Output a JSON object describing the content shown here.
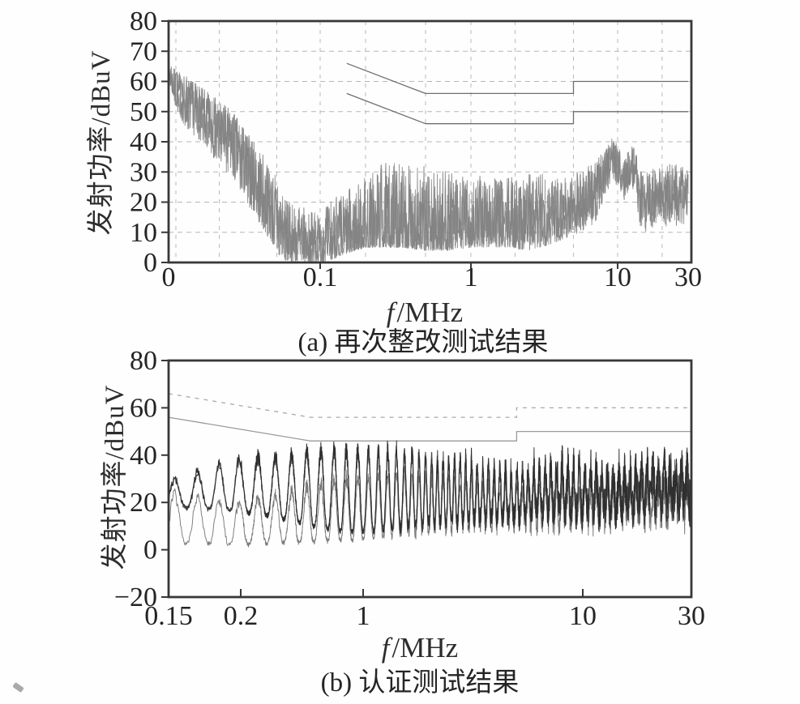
{
  "figure": {
    "description_visible_text_only": true
  },
  "chart_data": [
    {
      "id": "a",
      "type": "line",
      "caption": "(a) 再次整改测试结果",
      "ylabel": "发射功率/dBuV",
      "xlabel_f": "f",
      "xlabel_unit": "/MHz",
      "x_scale": "log",
      "y_range": [
        0,
        80
      ],
      "y_ticks": [
        0,
        10,
        20,
        30,
        40,
        50,
        60,
        70,
        80
      ],
      "x_ticks": [
        {
          "f": 0.0089,
          "label": "0"
        },
        {
          "f": 0.1,
          "label": "0.1"
        },
        {
          "f": 1,
          "label": "1"
        },
        {
          "f": 10,
          "label": "10"
        },
        {
          "f": 30,
          "label": "30"
        }
      ],
      "grid": {
        "horizontal_every_dbuv": 10,
        "vertical_at_mhz": [
          0.01,
          0.02,
          0.05,
          0.1,
          0.2,
          0.5,
          1,
          2,
          5,
          10,
          20
        ],
        "style": "dashed"
      },
      "limits": [
        {
          "name": "quasi-peak-limit",
          "style": "solid",
          "color": "#6e6e6e",
          "points_mhz_dbuv": [
            [
              0.15,
              66
            ],
            [
              0.5,
              56
            ],
            [
              5,
              56
            ],
            [
              5,
              60
            ],
            [
              30,
              60
            ]
          ]
        },
        {
          "name": "average-limit",
          "style": "solid",
          "color": "#6e6e6e",
          "points_mhz_dbuv": [
            [
              0.15,
              56
            ],
            [
              0.5,
              46
            ],
            [
              5,
              46
            ],
            [
              5,
              50
            ],
            [
              30,
              50
            ]
          ]
        }
      ],
      "series": [
        {
          "name": "emission-trace",
          "color": "#848484",
          "mode": "noise",
          "envelope_f_lo_hi_typ": [
            [
              0.0089,
              58,
              66,
              63
            ],
            [
              0.01,
              50,
              64,
              57
            ],
            [
              0.012,
              44,
              62,
              52
            ],
            [
              0.015,
              40,
              58,
              49
            ],
            [
              0.02,
              32,
              54,
              44
            ],
            [
              0.025,
              27,
              50,
              38
            ],
            [
              0.03,
              21,
              45,
              32
            ],
            [
              0.04,
              11,
              36,
              23
            ],
            [
              0.05,
              3,
              28,
              14
            ],
            [
              0.06,
              0,
              20,
              8
            ],
            [
              0.08,
              0,
              18,
              6
            ],
            [
              0.1,
              0,
              16,
              5
            ],
            [
              0.12,
              1,
              21,
              7
            ],
            [
              0.15,
              3,
              24,
              9
            ],
            [
              0.2,
              5,
              29,
              10
            ],
            [
              0.25,
              5,
              33,
              11
            ],
            [
              0.35,
              5,
              33,
              11
            ],
            [
              0.5,
              4,
              32,
              10
            ],
            [
              0.7,
              4,
              30,
              11
            ],
            [
              1.0,
              5,
              29,
              12
            ],
            [
              1.6,
              5,
              28,
              13
            ],
            [
              2.5,
              4,
              30,
              14
            ],
            [
              3.5,
              6,
              29,
              15
            ],
            [
              4.5,
              8,
              29,
              16
            ],
            [
              5.5,
              10,
              31,
              19
            ],
            [
              7.0,
              13,
              33,
              23
            ],
            [
              8.0,
              20,
              37,
              29
            ],
            [
              9.2,
              28,
              42,
              36
            ],
            [
              10.3,
              24,
              38,
              31
            ],
            [
              11.0,
              20,
              33,
              26
            ],
            [
              12.0,
              25,
              39,
              32
            ],
            [
              13.0,
              24,
              38,
              31
            ],
            [
              14.5,
              9,
              30,
              19
            ],
            [
              16,
              11,
              31,
              21
            ],
            [
              20,
              12,
              32,
              22
            ],
            [
              25,
              12,
              33,
              23
            ],
            [
              30,
              13,
              31,
              22
            ]
          ]
        }
      ]
    },
    {
      "id": "b",
      "type": "line",
      "caption": "(b) 认证测试结果",
      "ylabel": "发射功率/dBuV",
      "xlabel_f": "f",
      "xlabel_unit": "/MHz",
      "x_scale": "log",
      "y_range": [
        -20,
        80
      ],
      "y_ticks": [
        -20,
        0,
        20,
        40,
        60,
        80
      ],
      "x_ticks": [
        {
          "f": 0.15,
          "label": "0.15"
        },
        {
          "f": 0.2,
          "label": "0.2"
        },
        {
          "f": 1,
          "label": "1"
        },
        {
          "f": 10,
          "label": "10"
        },
        {
          "f": 30,
          "label": "30"
        }
      ],
      "grid": {
        "horizontal_every_dbuv": 0,
        "vertical_at_mhz": [],
        "style": "none"
      },
      "limits": [
        {
          "name": "quasi-peak-limit",
          "style": "dashed",
          "color": "#a8a8a8",
          "points_mhz_dbuv": [
            [
              0.15,
              66
            ],
            [
              0.5,
              56
            ],
            [
              5,
              56
            ],
            [
              5,
              60
            ],
            [
              30,
              60
            ]
          ]
        },
        {
          "name": "average-limit",
          "style": "solid",
          "color": "#9a9a9a",
          "points_mhz_dbuv": [
            [
              0.15,
              56
            ],
            [
              0.5,
              46
            ],
            [
              5,
              46
            ],
            [
              5,
              50
            ],
            [
              30,
              50
            ]
          ]
        }
      ],
      "hump_structure": {
        "note": "periodic switching-harmonic humps, ~3 humps between 0.15 and 0.2 MHz, merging into dense noise above ~1 MHz"
      },
      "series": [
        {
          "name": "average-trace",
          "color": "#7a7a7a",
          "mode": "comb",
          "envelope_f_lo_hi_typ": [
            [
              0.15,
              3,
              26,
              8
            ],
            [
              0.2,
              2,
              23,
              7
            ],
            [
              0.3,
              3,
              25,
              8
            ],
            [
              0.5,
              3,
              30,
              10
            ],
            [
              0.7,
              4,
              32,
              11
            ],
            [
              1.0,
              4,
              34,
              12
            ],
            [
              1.5,
              5,
              36,
              13
            ],
            [
              2.0,
              5,
              36,
              14
            ],
            [
              3.0,
              6,
              34,
              14
            ],
            [
              5.0,
              6,
              32,
              13
            ],
            [
              10,
              6,
              34,
              13
            ],
            [
              20,
              7,
              36,
              14
            ],
            [
              30,
              7,
              36,
              14
            ]
          ]
        },
        {
          "name": "peak-trace",
          "color": "#2e2e2e",
          "mode": "comb",
          "envelope_f_lo_hi_typ": [
            [
              0.15,
              18,
              30,
              22
            ],
            [
              0.18,
              17,
              37,
              24
            ],
            [
              0.2,
              16,
              41,
              24
            ],
            [
              0.25,
              15,
              42,
              25
            ],
            [
              0.3,
              14,
              41,
              24
            ],
            [
              0.4,
              12,
              43,
              24
            ],
            [
              0.5,
              10,
              45,
              25
            ],
            [
              0.7,
              8,
              46,
              25
            ],
            [
              1.0,
              7,
              46,
              26
            ],
            [
              1.5,
              7,
              47,
              26
            ],
            [
              2.0,
              8,
              45,
              26
            ],
            [
              3.0,
              8,
              44,
              26
            ],
            [
              4.0,
              9,
              42,
              25
            ],
            [
              5.0,
              8,
              40,
              24
            ],
            [
              6.0,
              9,
              43,
              25
            ],
            [
              8.0,
              9,
              46,
              27
            ],
            [
              10,
              8,
              45,
              26
            ],
            [
              13,
              8,
              43,
              25
            ],
            [
              16,
              9,
              44,
              26
            ],
            [
              20,
              10,
              45,
              27
            ],
            [
              25,
              10,
              46,
              27
            ],
            [
              30,
              10,
              45,
              27
            ]
          ]
        }
      ]
    }
  ]
}
